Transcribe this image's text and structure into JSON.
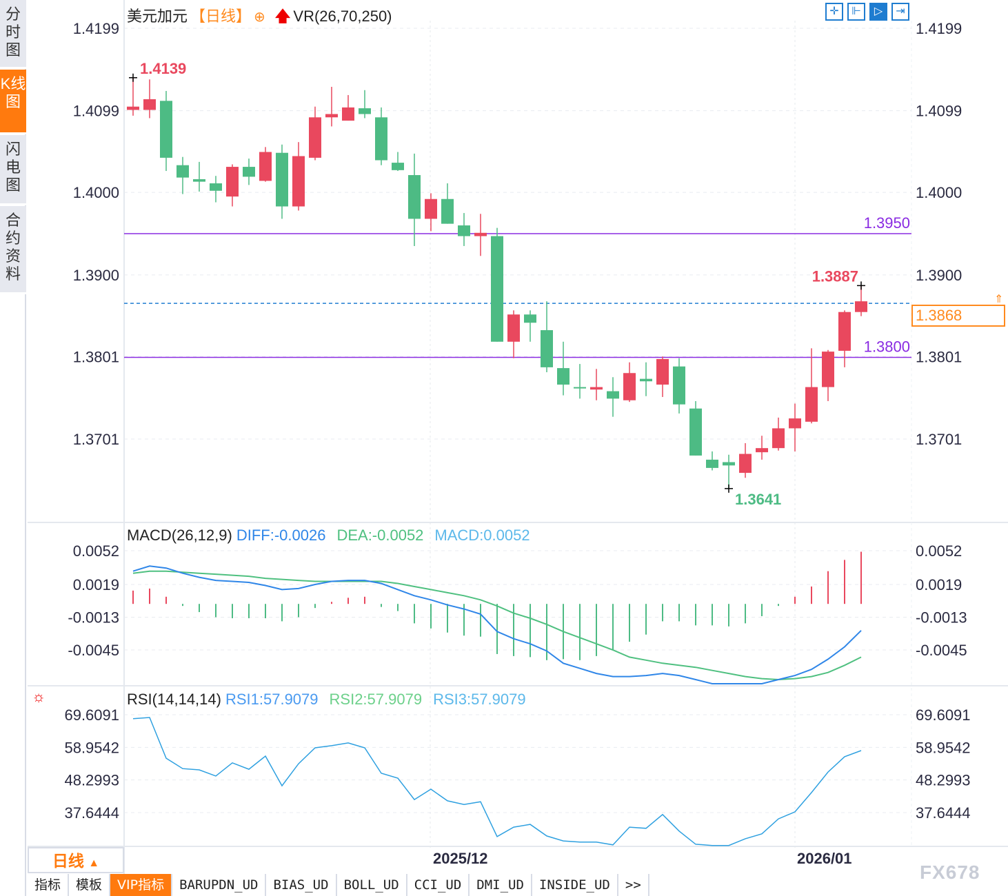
{
  "sidebar": {
    "tabs": [
      {
        "label": "分时图"
      },
      {
        "label": "K线图",
        "active": true
      },
      {
        "label": "闪电图"
      },
      {
        "label": "合约资料"
      }
    ]
  },
  "header": {
    "symbol": "美元加元",
    "period_tag": "【日线】",
    "indicator": "VR(26,70,250)",
    "add_icon": "circle-plus-icon",
    "arrow_icon": "red-up-arrow-icon"
  },
  "toolbar": {
    "tools": [
      {
        "icon": "crosshair-icon",
        "glyph": "✛"
      },
      {
        "icon": "fit-range-icon",
        "glyph": "⊩"
      },
      {
        "icon": "auto-scale-icon",
        "glyph": "▷"
      },
      {
        "icon": "scroll-end-icon",
        "glyph": "⇥"
      }
    ]
  },
  "colors": {
    "up": "#e9485e",
    "down": "#4dbb84",
    "diff": "#2f86e8",
    "dea": "#4fc080",
    "macd_label": "#5cb8ea",
    "rsi": "#2ea0e0",
    "level": "#8a2be2",
    "current": "#1e7cd0",
    "accent": "#ff7a0e"
  },
  "price_axis": {
    "ticks": [
      "1.4199",
      "1.4099",
      "1.4000",
      "1.3900",
      "1.3801",
      "1.3701"
    ],
    "tick_values": [
      1.4199,
      1.4099,
      1.4,
      1.39,
      1.3801,
      1.3701
    ]
  },
  "annotations": {
    "high": "1.4139",
    "high_value": 1.4139,
    "low": "1.3641",
    "low_value": 1.3641,
    "last_high": "1.3887",
    "last_high_value": 1.3887
  },
  "levels": [
    {
      "label": "1.3950",
      "value": 1.395
    },
    {
      "label": "1.3800",
      "value": 1.38
    }
  ],
  "current_price": {
    "label": "1.3868",
    "value": 1.3868
  },
  "chart_data": {
    "type": "candlestick",
    "x_labels": [
      {
        "label": "2025/12",
        "index": 18
      },
      {
        "label": "2026/01",
        "index": 40
      }
    ],
    "candles": [
      [
        1.41,
        1.4104,
        1.4139,
        1.4093
      ],
      [
        1.41,
        1.4113,
        1.4137,
        1.409
      ],
      [
        1.4111,
        1.4042,
        1.4123,
        1.4026
      ],
      [
        1.4033,
        1.4018,
        1.4043,
        1.3998
      ],
      [
        1.4016,
        1.4013,
        1.4037,
        1.4001
      ],
      [
        1.4011,
        1.4002,
        1.402,
        1.3988
      ],
      [
        1.3995,
        1.4031,
        1.4034,
        1.3983
      ],
      [
        1.4031,
        1.4019,
        1.4041,
        1.4009
      ],
      [
        1.4014,
        1.4049,
        1.4055,
        1.4013
      ],
      [
        1.4048,
        1.3983,
        1.4058,
        1.3968
      ],
      [
        1.3983,
        1.4044,
        1.4061,
        1.3978
      ],
      [
        1.4042,
        1.4091,
        1.4104,
        1.4039
      ],
      [
        1.4091,
        1.4095,
        1.4128,
        1.408
      ],
      [
        1.4087,
        1.4103,
        1.4118,
        1.4087
      ],
      [
        1.4102,
        1.4095,
        1.4124,
        1.409
      ],
      [
        1.4091,
        1.4039,
        1.4103,
        1.4033
      ],
      [
        1.4036,
        1.4027,
        1.4049,
        1.4026
      ],
      [
        1.4021,
        1.3968,
        1.4047,
        1.3935
      ],
      [
        1.3968,
        1.3992,
        1.3999,
        1.3953
      ],
      [
        1.3992,
        1.3962,
        1.4011,
        1.3962
      ],
      [
        1.396,
        1.3947,
        1.3975,
        1.3935
      ],
      [
        1.3947,
        1.3951,
        1.3974,
        1.3923
      ],
      [
        1.3947,
        1.3819,
        1.3957,
        1.3819
      ],
      [
        1.3819,
        1.3852,
        1.3857,
        1.3799
      ],
      [
        1.3852,
        1.3842,
        1.3857,
        1.3819
      ],
      [
        1.3833,
        1.3788,
        1.3868,
        1.3782
      ],
      [
        1.3787,
        1.3767,
        1.3819,
        1.3754
      ],
      [
        1.3764,
        1.3763,
        1.3792,
        1.375
      ],
      [
        1.3761,
        1.3764,
        1.3786,
        1.3748
      ],
      [
        1.3759,
        1.375,
        1.3776,
        1.3728
      ],
      [
        1.3748,
        1.3781,
        1.3794,
        1.3746
      ],
      [
        1.3774,
        1.3771,
        1.3794,
        1.3753
      ],
      [
        1.3767,
        1.3798,
        1.3801,
        1.3752
      ],
      [
        1.3789,
        1.3743,
        1.3799,
        1.3732
      ],
      [
        1.3738,
        1.3681,
        1.3747,
        1.3681
      ],
      [
        1.3676,
        1.3666,
        1.3686,
        1.3663
      ],
      [
        1.3673,
        1.3669,
        1.3682,
        1.3641
      ],
      [
        1.366,
        1.3683,
        1.3696,
        1.3654
      ],
      [
        1.3685,
        1.369,
        1.3705,
        1.3676
      ],
      [
        1.369,
        1.3714,
        1.3727,
        1.3687
      ],
      [
        1.3714,
        1.3726,
        1.3744,
        1.3686
      ],
      [
        1.3722,
        1.3764,
        1.3811,
        1.372
      ],
      [
        1.3764,
        1.3807,
        1.3809,
        1.3747
      ],
      [
        1.3808,
        1.3855,
        1.3857,
        1.3788
      ],
      [
        1.3855,
        1.3868,
        1.3887,
        1.385
      ]
    ],
    "candle_format": [
      "open",
      "close",
      "high",
      "low"
    ],
    "ylim": [
      1.36,
      1.4199
    ],
    "macd": {
      "title": "MACD(26,12,9)",
      "diff_label": "DIFF:-0.0026",
      "dea_label": "DEA:-0.0052",
      "macd_label": "MACD:0.0052",
      "ticks": [
        "0.0052",
        "0.0019",
        "-0.0013",
        "-0.0045"
      ],
      "tick_values": [
        0.0052,
        0.0019,
        -0.0013,
        -0.0045
      ],
      "diff": [
        0.0032,
        0.0037,
        0.0035,
        0.003,
        0.0026,
        0.0023,
        0.0022,
        0.0021,
        0.0018,
        0.0014,
        0.0015,
        0.0019,
        0.0022,
        0.0023,
        0.0023,
        0.002,
        0.0014,
        0.0008,
        0.0004,
        -0.0001,
        -0.0005,
        -0.001,
        -0.0027,
        -0.0034,
        -0.0039,
        -0.0046,
        -0.0058,
        -0.0063,
        -0.0068,
        -0.0071,
        -0.0071,
        -0.007,
        -0.0068,
        -0.007,
        -0.0074,
        -0.0078,
        -0.0078,
        -0.0078,
        -0.0078,
        -0.0074,
        -0.007,
        -0.0064,
        -0.0054,
        -0.0042,
        -0.0026
      ],
      "dea": [
        0.003,
        0.0032,
        0.0032,
        0.0031,
        0.003,
        0.0029,
        0.0028,
        0.0027,
        0.0025,
        0.0024,
        0.0023,
        0.0022,
        0.0022,
        0.0022,
        0.0022,
        0.0022,
        0.002,
        0.0017,
        0.0014,
        0.0011,
        0.0008,
        0.0004,
        -0.0002,
        -0.0009,
        -0.0014,
        -0.002,
        -0.0027,
        -0.0033,
        -0.0039,
        -0.0045,
        -0.0052,
        -0.0055,
        -0.0058,
        -0.006,
        -0.0062,
        -0.0065,
        -0.0068,
        -0.0071,
        -0.0073,
        -0.0074,
        -0.0073,
        -0.0071,
        -0.0067,
        -0.006,
        -0.0052
      ],
      "hist": [
        0.0013,
        0.0015,
        0.0007,
        -0.0002,
        -0.0008,
        -0.0013,
        -0.0014,
        -0.0014,
        -0.0014,
        -0.0017,
        -0.0013,
        -0.0004,
        0.0002,
        0.0006,
        0.0007,
        -0.0003,
        -0.0007,
        -0.0019,
        -0.0024,
        -0.0028,
        -0.0031,
        -0.0032,
        -0.0049,
        -0.0051,
        -0.0052,
        -0.0055,
        -0.0054,
        -0.0055,
        -0.0051,
        -0.0045,
        -0.0037,
        -0.003,
        -0.0017,
        -0.0017,
        -0.0021,
        -0.0021,
        -0.0022,
        -0.0019,
        -0.0012,
        -0.0002,
        0.0007,
        0.0017,
        0.0032,
        0.0043,
        0.0051
      ],
      "ylim": [
        -0.0085,
        0.0055
      ]
    },
    "rsi": {
      "title": "RSI(14,14,14)",
      "rsi1_label": "RSI1:57.9079",
      "rsi2_label": "RSI2:57.9079",
      "rsi3_label": "RSI3:57.9079",
      "ticks": [
        "69.6091",
        "58.9542",
        "48.2993",
        "37.6444"
      ],
      "tick_values": [
        69.6091,
        58.9542,
        48.2993,
        37.6444
      ],
      "values": [
        68.3,
        68.7,
        55.4,
        52.0,
        51.6,
        49.6,
        53.9,
        51.8,
        56.1,
        46.4,
        53.6,
        58.8,
        59.5,
        60.4,
        58.8,
        50.5,
        48.9,
        41.9,
        45.3,
        41.5,
        40.3,
        41.2,
        29.8,
        32.9,
        33.8,
        30.0,
        28.4,
        28.0,
        28.0,
        27.1,
        32.9,
        32.5,
        37.0,
        31.6,
        27.3,
        26.9,
        26.9,
        29.1,
        30.7,
        35.6,
        37.9,
        44.2,
        50.9,
        55.9,
        57.9
      ],
      "ylim": [
        25.5,
        71.0
      ]
    }
  },
  "bottom": {
    "period": "日线",
    "period_icon": "triangle-up-icon",
    "tabs": [
      {
        "label": "指标"
      },
      {
        "label": "模板"
      },
      {
        "label": "VIP指标",
        "active": true
      },
      {
        "label": "BARUPDN_UD"
      },
      {
        "label": "BIAS_UD"
      },
      {
        "label": "BOLL_UD"
      },
      {
        "label": "CCI_UD"
      },
      {
        "label": "DMI_UD"
      },
      {
        "label": "INSIDE_UD"
      },
      {
        "label": ">>"
      }
    ]
  },
  "watermark": "FX678"
}
